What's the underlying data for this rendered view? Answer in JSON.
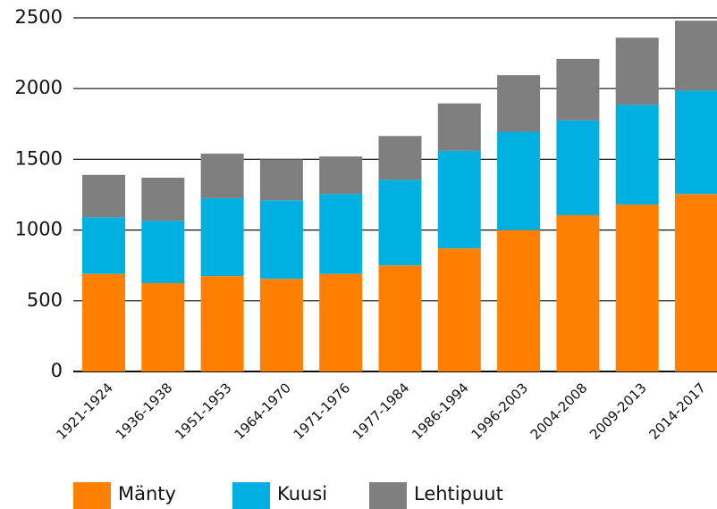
{
  "chart_data": {
    "type": "stacked_bar",
    "categories": [
      "1921-1924",
      "1936-1938",
      "1951-1953",
      "1964-1970",
      "1971-1976",
      "1977-1984",
      "1986-1994",
      "1996-2003",
      "2004-2008",
      "2009-2013",
      "2014-2017"
    ],
    "series": [
      {
        "name": "Mänty",
        "color": "#ff8000",
        "values": [
          690,
          625,
          675,
          655,
          690,
          750,
          870,
          1000,
          1105,
          1180,
          1255
        ]
      },
      {
        "name": "Kuusi",
        "color": "#00b0e0",
        "values": [
          400,
          440,
          550,
          555,
          565,
          605,
          690,
          695,
          670,
          705,
          730
        ]
      },
      {
        "name": "Lehtipuut",
        "color": "#7f7f7f",
        "values": [
          300,
          305,
          315,
          290,
          265,
          310,
          335,
          400,
          435,
          475,
          495
        ]
      }
    ],
    "ylim": [
      0,
      2500
    ],
    "yticks": [
      0,
      500,
      1000,
      1500,
      2000,
      2500
    ],
    "grid": true,
    "legend": "bottom"
  }
}
